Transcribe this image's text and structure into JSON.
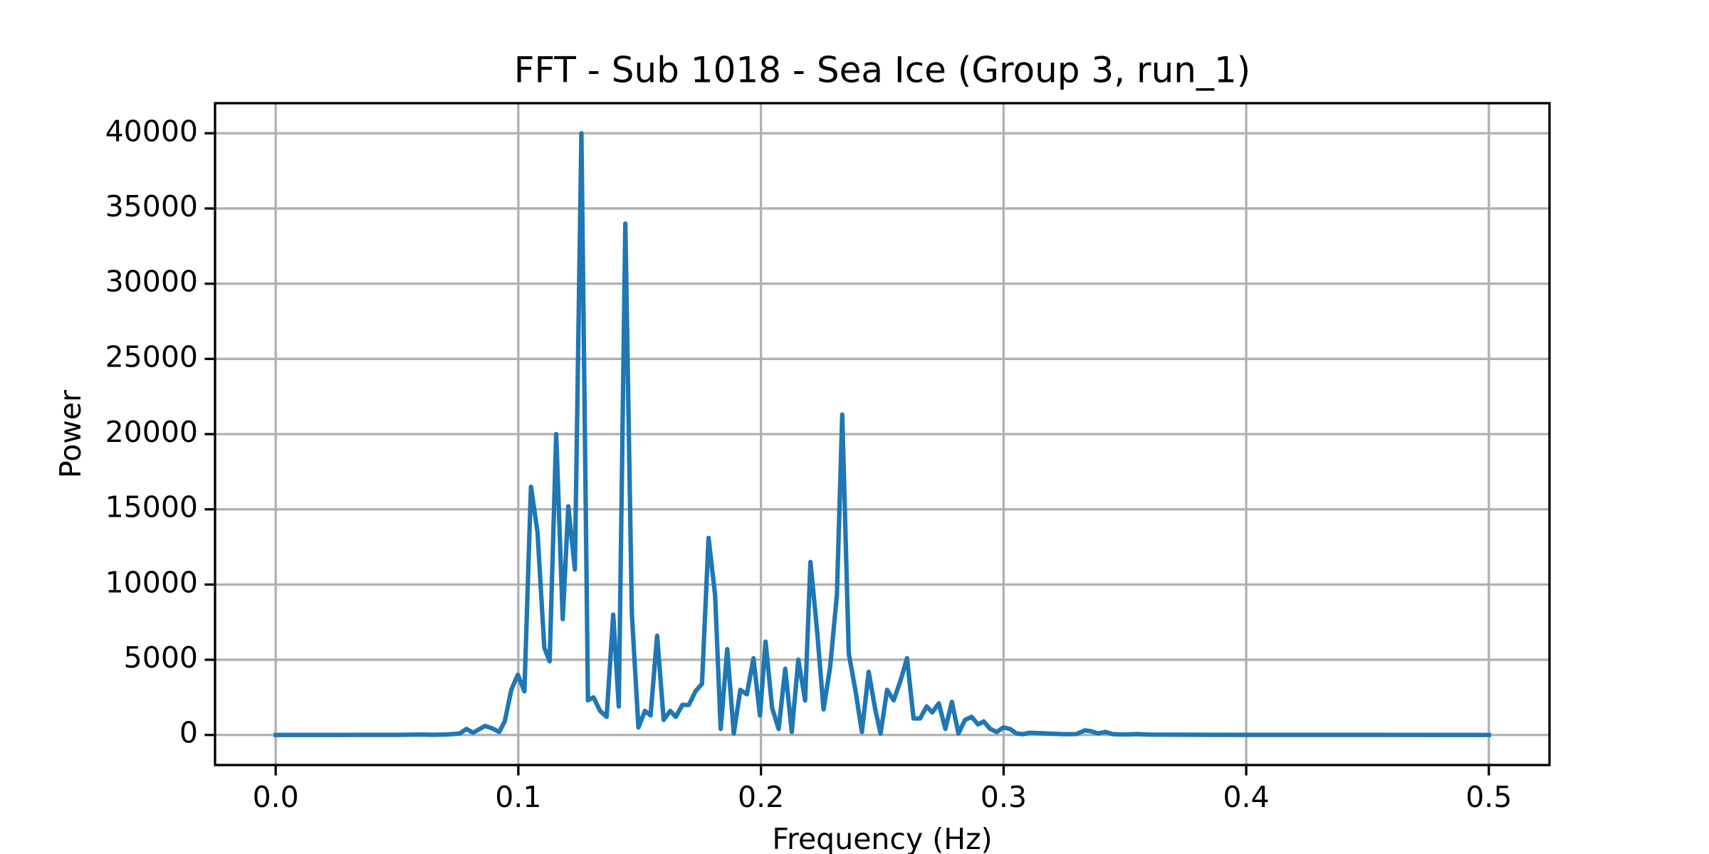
{
  "chart_data": {
    "type": "line",
    "title": "FFT - Sub 1018 - Sea Ice (Group 3, run_1)",
    "x_label": "Frequency (Hz)",
    "y_label": "Power",
    "x": [
      0,
      0.025,
      0.05,
      0.06,
      0.065,
      0.07,
      0.073,
      0.0759,
      0.0786,
      0.0813,
      0.0863,
      0.089,
      0.0921,
      0.0944,
      0.0971,
      0.0998,
      0.1025,
      0.1052,
      0.1079,
      0.1107,
      0.1129,
      0.1156,
      0.1183,
      0.1206,
      0.1233,
      0.126,
      0.1287,
      0.131,
      0.1337,
      0.1364,
      0.1391,
      0.1414,
      0.1441,
      0.1468,
      0.1495,
      0.1522,
      0.1545,
      0.1572,
      0.1599,
      0.1626,
      0.1649,
      0.1676,
      0.1703,
      0.173,
      0.1757,
      0.1784,
      0.1811,
      0.1834,
      0.1861,
      0.1888,
      0.1915,
      0.1942,
      0.1969,
      0.1996,
      0.2019,
      0.2046,
      0.2073,
      0.21,
      0.2127,
      0.2154,
      0.2182,
      0.2204,
      0.2231,
      0.2258,
      0.2285,
      0.2313,
      0.2335,
      0.2362,
      0.2389,
      0.2416,
      0.2444,
      0.2471,
      0.2493,
      0.252,
      0.2547,
      0.2575,
      0.2602,
      0.2629,
      0.2656,
      0.2683,
      0.2706,
      0.2733,
      0.276,
      0.2787,
      0.2814,
      0.2841,
      0.2868,
      0.2895,
      0.2918,
      0.2945,
      0.2972,
      0.2999,
      0.3026,
      0.3053,
      0.308,
      0.3107,
      0.32,
      0.325,
      0.33,
      0.3335,
      0.336,
      0.339,
      0.342,
      0.345,
      0.35,
      0.355,
      0.36,
      0.38,
      0.4,
      0.45,
      0.5
    ],
    "series": [
      {
        "name": "Power",
        "color": "#1f77b4",
        "values": [
          0,
          0,
          5,
          30,
          10,
          30,
          60,
          100,
          400,
          150,
          600,
          450,
          200,
          900,
          3000,
          4000,
          2900,
          16500,
          13500,
          5800,
          4900,
          20000,
          7700,
          15200,
          11000,
          40000,
          2300,
          2500,
          1600,
          1200,
          8000,
          1900,
          34000,
          8000,
          500,
          1600,
          1300,
          6600,
          1000,
          1600,
          1200,
          2000,
          2000,
          2900,
          3400,
          13100,
          9300,
          400,
          5700,
          100,
          3000,
          2700,
          5100,
          1300,
          6200,
          1800,
          400,
          4400,
          200,
          5000,
          2300,
          11500,
          7000,
          1700,
          4500,
          9300,
          21300,
          5400,
          3000,
          200,
          4200,
          1700,
          100,
          3000,
          2300,
          3600,
          5100,
          1100,
          1100,
          1900,
          1500,
          2100,
          400,
          2200,
          100,
          1000,
          1200,
          700,
          900,
          400,
          200,
          500,
          400,
          100,
          50,
          150,
          80,
          50,
          60,
          300,
          250,
          100,
          200,
          50,
          30,
          60,
          20,
          10,
          5,
          2,
          0
        ]
      }
    ],
    "xlim": [
      -0.025,
      0.525
    ],
    "ylim": [
      -2000,
      42000
    ],
    "xticks": [
      {
        "value": 0,
        "label": "0.0"
      },
      0.1,
      0.2,
      0.3,
      0.4,
      0.5
    ],
    "yticks": [
      0,
      5000,
      10000,
      15000,
      20000,
      25000,
      30000,
      35000,
      40000
    ],
    "grid": true
  }
}
